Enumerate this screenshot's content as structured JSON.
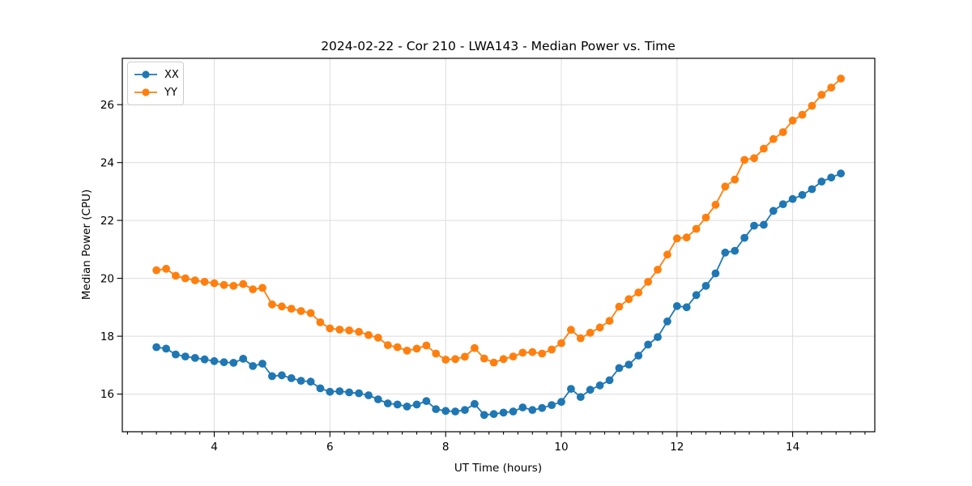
{
  "chart_data": {
    "type": "line",
    "title": "2024-02-22 - Cor 210 - LWA143 - Median Power vs. Time",
    "xlabel": "UT Time (hours)",
    "ylabel": "Median Power (CPU)",
    "xlim": [
      2.41,
      15.42
    ],
    "ylim": [
      14.7,
      27.6
    ],
    "x_ticks": [
      4,
      6,
      8,
      10,
      12,
      14
    ],
    "x_minor_step": 0.25,
    "y_ticks": [
      16,
      18,
      20,
      22,
      24,
      26
    ],
    "grid": true,
    "legend_position": "upper left",
    "x": [
      3.0,
      3.167,
      3.333,
      3.5,
      3.667,
      3.833,
      4.0,
      4.167,
      4.333,
      4.5,
      4.667,
      4.833,
      5.0,
      5.167,
      5.333,
      5.5,
      5.667,
      5.833,
      6.0,
      6.167,
      6.333,
      6.5,
      6.667,
      6.833,
      7.0,
      7.167,
      7.333,
      7.5,
      7.667,
      7.833,
      8.0,
      8.167,
      8.333,
      8.5,
      8.667,
      8.833,
      9.0,
      9.167,
      9.333,
      9.5,
      9.667,
      9.833,
      10.0,
      10.167,
      10.333,
      10.5,
      10.667,
      10.833,
      11.0,
      11.167,
      11.333,
      11.5,
      11.667,
      11.833,
      12.0,
      12.167,
      12.333,
      12.5,
      12.667,
      12.833,
      13.0,
      13.167,
      13.333,
      13.5,
      13.667,
      13.833,
      14.0,
      14.167,
      14.333,
      14.5,
      14.667,
      14.833
    ],
    "series": [
      {
        "name": "XX",
        "color": "#1f77b4",
        "values": [
          17.62,
          17.57,
          17.37,
          17.3,
          17.25,
          17.2,
          17.14,
          17.1,
          17.08,
          17.22,
          16.97,
          17.05,
          16.62,
          16.65,
          16.55,
          16.46,
          16.43,
          16.2,
          16.08,
          16.1,
          16.06,
          16.03,
          15.96,
          15.82,
          15.68,
          15.64,
          15.57,
          15.64,
          15.76,
          15.48,
          15.42,
          15.4,
          15.45,
          15.66,
          15.28,
          15.31,
          15.36,
          15.4,
          15.54,
          15.45,
          15.52,
          15.62,
          15.73,
          16.18,
          15.9,
          16.15,
          16.3,
          16.48,
          16.9,
          17.02,
          17.33,
          17.71,
          17.97,
          18.51,
          19.04,
          19.0,
          19.42,
          19.74,
          20.17,
          20.89,
          20.95,
          21.4,
          21.82,
          21.85,
          22.33,
          22.56,
          22.74,
          22.88,
          23.08,
          23.34,
          23.48,
          23.62
        ]
      },
      {
        "name": "YY",
        "color": "#ff7f0e",
        "values": [
          20.28,
          20.33,
          20.09,
          20.0,
          19.93,
          19.88,
          19.83,
          19.77,
          19.74,
          19.8,
          19.62,
          19.67,
          19.1,
          19.03,
          18.95,
          18.87,
          18.8,
          18.48,
          18.27,
          18.23,
          18.2,
          18.15,
          18.04,
          17.95,
          17.69,
          17.62,
          17.5,
          17.57,
          17.68,
          17.4,
          17.19,
          17.21,
          17.29,
          17.59,
          17.23,
          17.09,
          17.21,
          17.3,
          17.43,
          17.45,
          17.4,
          17.54,
          17.76,
          18.22,
          17.93,
          18.12,
          18.3,
          18.53,
          19.02,
          19.28,
          19.51,
          19.88,
          20.3,
          20.82,
          21.38,
          21.41,
          21.71,
          22.1,
          22.54,
          23.17,
          23.41,
          24.09,
          24.15,
          24.48,
          24.81,
          25.05,
          25.45,
          25.65,
          25.96,
          26.34,
          26.59,
          26.9
        ]
      }
    ],
    "style": {
      "grid_color": "#dcdcdc",
      "spine_color": "#000000",
      "background": "#ffffff",
      "marker_radius": 4.9,
      "line_width": 1.8
    }
  }
}
